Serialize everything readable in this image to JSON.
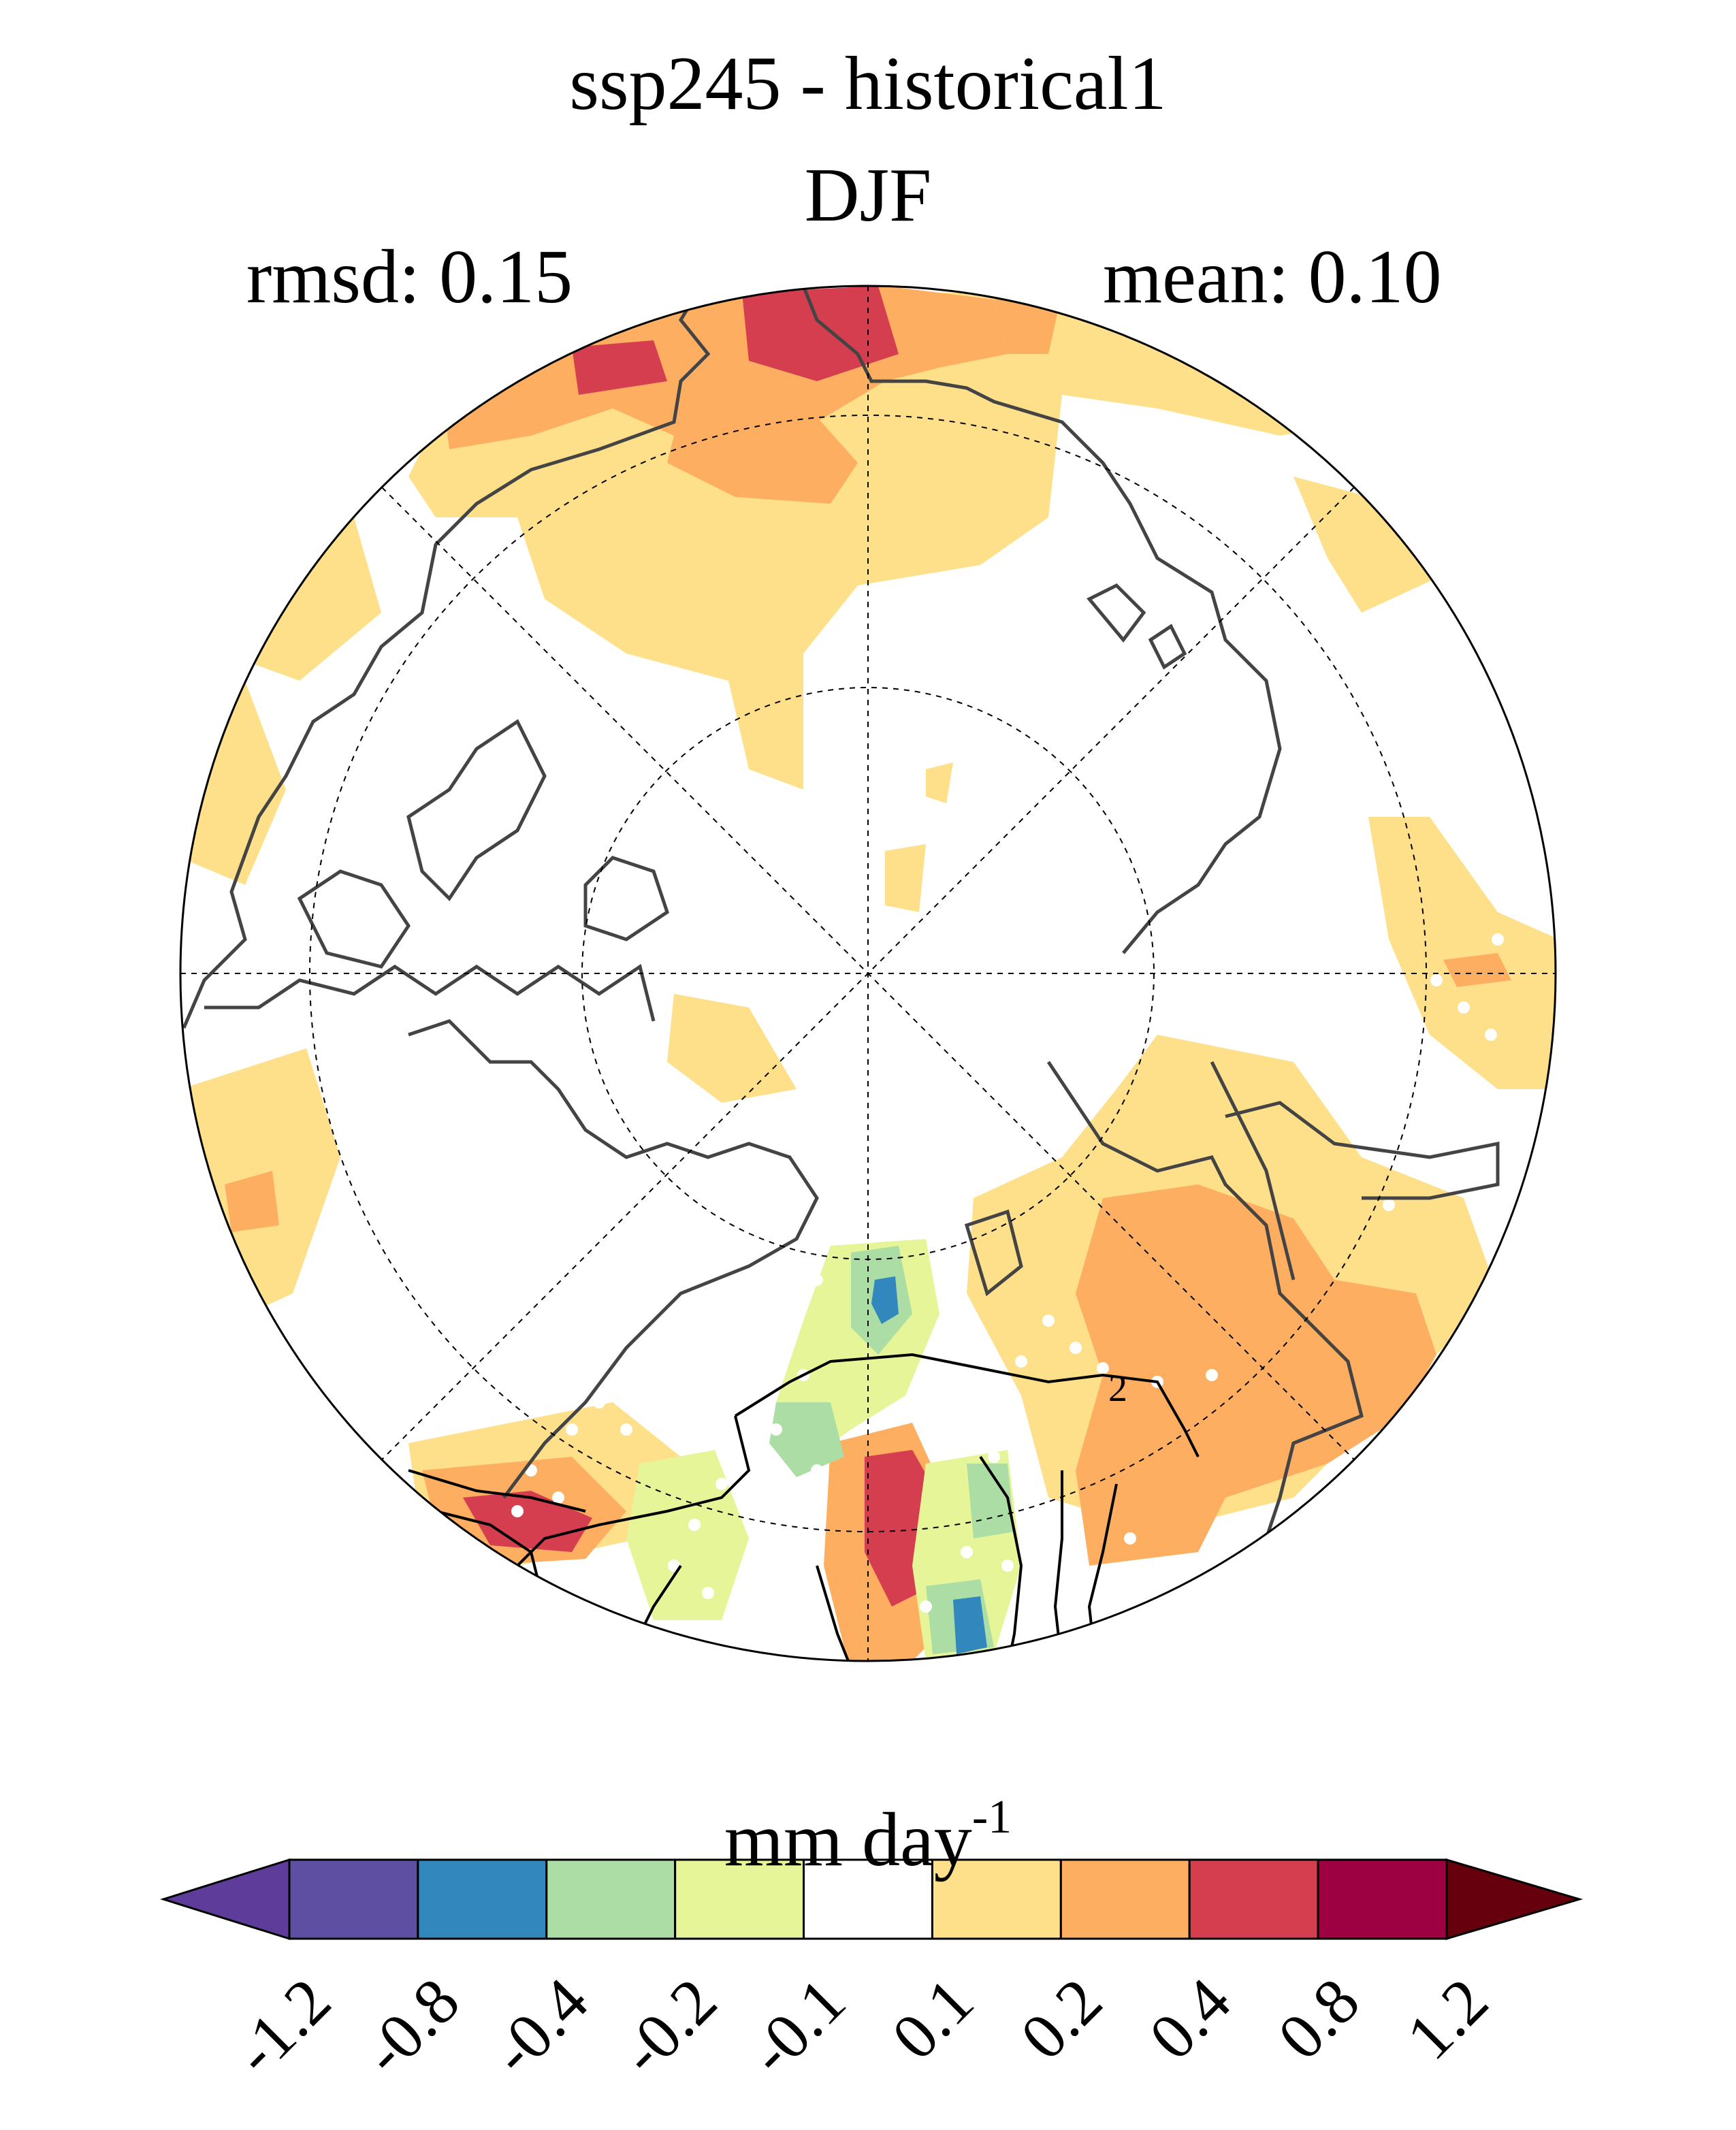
{
  "header": {
    "title": "ssp245 - historical1",
    "season": "DJF",
    "rmsd_label": "rmsd: 0.15",
    "mean_label": "mean: 0.10"
  },
  "map": {
    "projection": "north polar stereographic",
    "contour_label": "2",
    "stippling": "white dots"
  },
  "colorbar": {
    "units_text": "mm day",
    "units_exponent": "-1",
    "bins": [
      {
        "color": "#5e3c99",
        "lower": "",
        "upper": "-1.2"
      },
      {
        "color": "#5e4fa2",
        "lower": "-1.2",
        "upper": "-0.8"
      },
      {
        "color": "#3288bd",
        "lower": "-0.8",
        "upper": "-0.4"
      },
      {
        "color": "#abdda4",
        "lower": "-0.4",
        "upper": "-0.2"
      },
      {
        "color": "#e6f598",
        "lower": "-0.2",
        "upper": "-0.1"
      },
      {
        "color": "#ffffff",
        "lower": "-0.1",
        "upper": "0.1"
      },
      {
        "color": "#fee08b",
        "lower": "0.1",
        "upper": "0.2"
      },
      {
        "color": "#fdae61",
        "lower": "0.2",
        "upper": "0.4"
      },
      {
        "color": "#d53e4f",
        "lower": "0.4",
        "upper": "0.8"
      },
      {
        "color": "#9e0142",
        "lower": "0.8",
        "upper": "1.2"
      },
      {
        "color": "#67000d",
        "lower": "1.2",
        "upper": ""
      }
    ],
    "tick_labels": [
      "-1.2",
      "-0.8",
      "-0.4",
      "-0.2",
      "-0.1",
      "0.1",
      "0.2",
      "0.4",
      "0.8",
      "1.2"
    ]
  }
}
